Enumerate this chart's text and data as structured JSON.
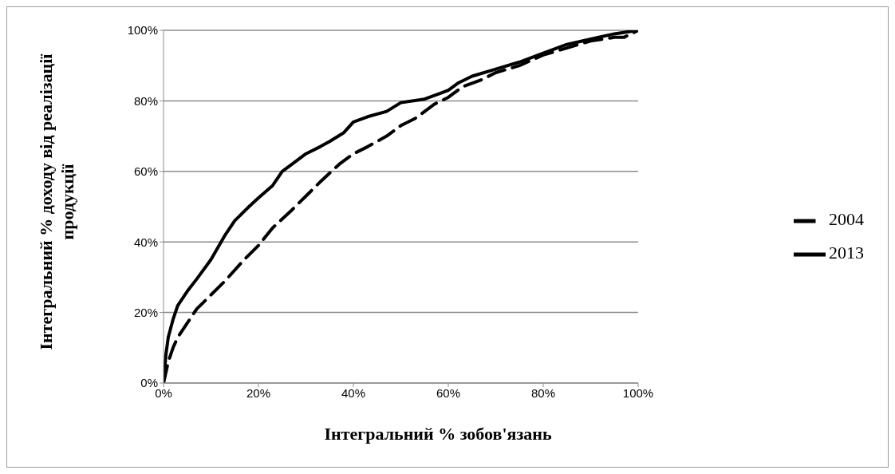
{
  "chart_data": {
    "type": "line",
    "xlabel": "Інтегральний % зобов'язань",
    "ylabel": "Інтегральний % доходу від реалізації продукції",
    "xlim": [
      0,
      100
    ],
    "xticks": [
      {
        "value": 0,
        "label": "0%"
      },
      {
        "value": 20,
        "label": "20%"
      },
      {
        "value": 40,
        "label": "40%"
      },
      {
        "value": 60,
        "label": "60%"
      },
      {
        "value": 80,
        "label": "80%"
      },
      {
        "value": 100,
        "label": "100%"
      }
    ],
    "ylim": [
      0,
      100
    ],
    "yticks": [
      {
        "value": 0,
        "label": "0%"
      },
      {
        "value": 20,
        "label": "20%"
      },
      {
        "value": 40,
        "label": "40%"
      },
      {
        "value": 60,
        "label": "60%"
      },
      {
        "value": 80,
        "label": "80%"
      },
      {
        "value": 100,
        "label": "100%"
      }
    ],
    "grid": "y",
    "legend": "right",
    "marker": "none",
    "series": [
      {
        "name": "2013",
        "color": "#000000",
        "line_style": "solid",
        "x": [
          0,
          0.5,
          1,
          2,
          3,
          5,
          7,
          10,
          13,
          15,
          18,
          20,
          23,
          25,
          28,
          30,
          33,
          35,
          38,
          40,
          43,
          47,
          50,
          55,
          58,
          60,
          62,
          65,
          70,
          75,
          80,
          85,
          90,
          95,
          100
        ],
        "values": [
          0,
          8,
          13,
          18,
          22,
          26,
          29.5,
          35,
          42,
          46,
          50,
          52.5,
          56,
          60,
          63,
          65,
          67,
          68.5,
          71,
          74,
          75.5,
          77,
          79.5,
          80.5,
          82,
          83,
          85,
          87,
          89,
          91,
          93.5,
          96,
          97.5,
          99,
          100
        ]
      },
      {
        "name": "2004",
        "color": "#000000",
        "line_style": "dashed",
        "x": [
          0,
          1,
          2,
          3,
          5,
          7,
          10,
          13,
          17,
          20,
          23,
          27,
          30,
          33,
          37,
          40,
          43,
          47,
          50,
          53,
          57,
          60,
          63,
          67,
          70,
          75,
          80,
          85,
          90,
          95,
          97,
          100
        ],
        "values": [
          0,
          6,
          10,
          13,
          17,
          21,
          25,
          29,
          35,
          39,
          44,
          49,
          53,
          57,
          62,
          65,
          67,
          70,
          73,
          75,
          79,
          81,
          84,
          86,
          88,
          90,
          93,
          95,
          97,
          98,
          98,
          100
        ]
      }
    ]
  }
}
